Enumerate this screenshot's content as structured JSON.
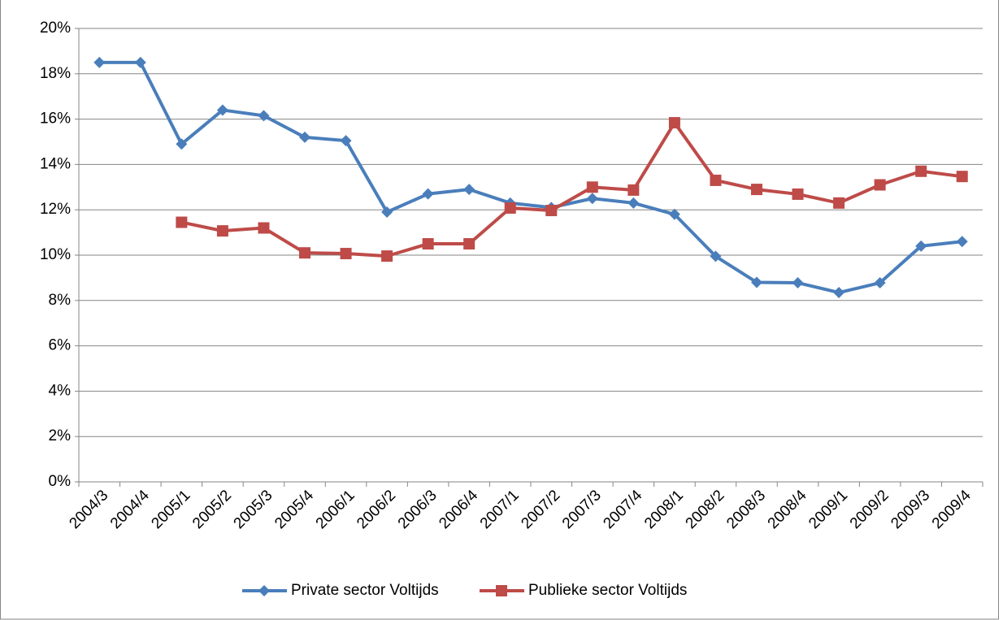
{
  "chart_data": {
    "type": "line",
    "categories": [
      "2004/3",
      "2004/4",
      "2005/1",
      "2005/2",
      "2005/3",
      "2005/4",
      "2006/1",
      "2006/2",
      "2006/3",
      "2006/4",
      "2007/1",
      "2007/2",
      "2007/3",
      "2007/4",
      "2008/1",
      "2008/2",
      "2008/3",
      "2008/4",
      "2009/1",
      "2009/2",
      "2009/3",
      "2009/4"
    ],
    "series": [
      {
        "name": "Private sector Voltijds",
        "color": "#4a7ebb",
        "marker": "diamond",
        "values": [
          18.5,
          18.5,
          14.9,
          16.4,
          16.15,
          15.2,
          15.05,
          11.9,
          12.7,
          12.9,
          12.3,
          12.1,
          12.5,
          12.3,
          11.8,
          9.95,
          8.8,
          8.78,
          8.35,
          8.78,
          10.4,
          10.6
        ]
      },
      {
        "name": "Publieke sector Voltijds",
        "color": "#be4b48",
        "marker": "square",
        "values": [
          null,
          null,
          11.45,
          11.07,
          11.2,
          10.1,
          10.07,
          9.96,
          10.5,
          10.5,
          12.08,
          11.97,
          13.0,
          12.87,
          15.84,
          13.3,
          12.9,
          12.69,
          12.3,
          13.1,
          13.7,
          13.47
        ]
      }
    ],
    "ylim": [
      0,
      20
    ],
    "yticks": [
      {
        "value": 0,
        "label": "0%"
      },
      {
        "value": 2,
        "label": "2%"
      },
      {
        "value": 4,
        "label": "4%"
      },
      {
        "value": 6,
        "label": "6%"
      },
      {
        "value": 8,
        "label": "8%"
      },
      {
        "value": 10,
        "label": "10%"
      },
      {
        "value": 12,
        "label": "12%"
      },
      {
        "value": 14,
        "label": "14%"
      },
      {
        "value": 16,
        "label": "16%"
      },
      {
        "value": 18,
        "label": "18%"
      },
      {
        "value": 20,
        "label": "20%"
      }
    ],
    "grid": true,
    "legend": "bottom"
  }
}
